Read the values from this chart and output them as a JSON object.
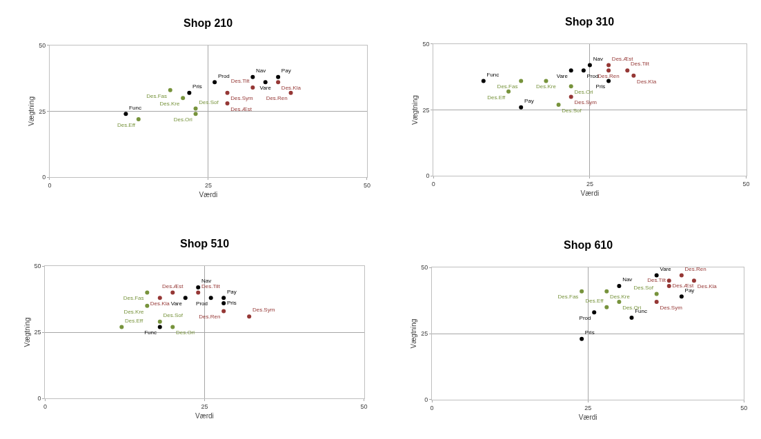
{
  "chart_data": [
    {
      "type": "scatter",
      "title": "Shop 210",
      "xlabel": "Værdi",
      "ylabel": "Vægtning",
      "xlim": [
        0,
        50
      ],
      "ylim": [
        0,
        50
      ],
      "xticks": [
        0,
        25,
        50
      ],
      "yticks": [
        0,
        25,
        50
      ],
      "grid": true,
      "marker": "circle",
      "series": [
        {
          "color": "#000000",
          "x": [
            26,
            22,
            32,
            34,
            36,
            12
          ],
          "values": [
            36,
            32,
            38,
            36,
            38,
            24
          ],
          "value_labels": [
            "Prod",
            "Pris",
            "Nav",
            "Vare",
            "Pay",
            "Func"
          ]
        },
        {
          "color": "#77933c",
          "x": [
            19,
            21,
            23,
            23,
            14
          ],
          "values": [
            33,
            30,
            26,
            24,
            22
          ],
          "value_labels": [
            "Des.Fas",
            "Des.Kre",
            "Des.Sof",
            "Des.Ori",
            "Des.Eff"
          ]
        },
        {
          "color": "#953735",
          "x": [
            28,
            28,
            32,
            36,
            38
          ],
          "values": [
            32,
            28,
            34,
            36,
            32
          ],
          "value_labels": [
            "Des.Sym",
            "Des.Æst",
            "Des.Tilt",
            "Des.Kla",
            "Des.Ren"
          ]
        }
      ]
    },
    {
      "type": "scatter",
      "title": "Shop 310",
      "xlabel": "Værdi",
      "ylabel": "Vægtning",
      "xlim": [
        0,
        50
      ],
      "ylim": [
        0,
        50
      ],
      "xticks": [
        0,
        25,
        50
      ],
      "yticks": [
        0,
        25,
        50
      ],
      "grid": true,
      "marker": "circle",
      "series": [
        {
          "color": "#000000",
          "x": [
            25,
            22,
            24,
            8,
            28,
            14
          ],
          "values": [
            42,
            40,
            40,
            36,
            36,
            26
          ],
          "value_labels": [
            "Nav",
            "Vare",
            "Prod",
            "Func",
            "Pris",
            "Pay"
          ]
        },
        {
          "color": "#77933c",
          "x": [
            14,
            18,
            22,
            12,
            20
          ],
          "values": [
            36,
            36,
            34,
            32,
            27
          ],
          "value_labels": [
            "Des.Fas",
            "Des.Kre",
            "Des.Ori",
            "Des.Eff",
            "Des.Sof"
          ]
        },
        {
          "color": "#953735",
          "x": [
            28,
            28,
            31,
            32,
            22
          ],
          "values": [
            42,
            40,
            40,
            38,
            30
          ],
          "value_labels": [
            "Des.Æst",
            "Des.Ren",
            "Des.Tilt",
            "Des.Kla",
            "Des.Sym"
          ]
        }
      ]
    },
    {
      "type": "scatter",
      "title": "Shop 510",
      "xlabel": "Værdi",
      "ylabel": "Vægtning",
      "xlim": [
        0,
        50
      ],
      "ylim": [
        0,
        50
      ],
      "xticks": [
        0,
        25,
        50
      ],
      "yticks": [
        0,
        25,
        50
      ],
      "grid": true,
      "marker": "circle",
      "series": [
        {
          "color": "#000000",
          "x": [
            24,
            22,
            26,
            28,
            28,
            18
          ],
          "values": [
            42,
            38,
            38,
            38,
            36,
            27
          ],
          "value_labels": [
            "Nav",
            "Vare",
            "Prod",
            "Pay",
            "Pris",
            "Func"
          ]
        },
        {
          "color": "#77933c",
          "x": [
            16,
            16,
            18,
            12,
            20
          ],
          "values": [
            40,
            35,
            29,
            27,
            27
          ],
          "value_labels": [
            "Des.Fas",
            "Des.Kre",
            "Des.Sof",
            "Des.Eff",
            "Des.Ori"
          ]
        },
        {
          "color": "#953735",
          "x": [
            20,
            24,
            18,
            28,
            32
          ],
          "values": [
            40,
            40,
            38,
            33,
            31
          ],
          "value_labels": [
            "Des.Æst",
            "Des.Tilt",
            "Des.Kla",
            "Des.Ren",
            "Des.Sym"
          ]
        }
      ]
    },
    {
      "type": "scatter",
      "title": "Shop 610",
      "xlabel": "Værdi",
      "ylabel": "Vægtning",
      "xlim": [
        0,
        50
      ],
      "ylim": [
        0,
        50
      ],
      "xticks": [
        0,
        25,
        50
      ],
      "yticks": [
        0,
        25,
        50
      ],
      "grid": true,
      "marker": "circle",
      "series": [
        {
          "color": "#000000",
          "x": [
            36,
            30,
            40,
            26,
            32,
            24
          ],
          "values": [
            47,
            43,
            39,
            33,
            31,
            23
          ],
          "value_labels": [
            "Vare",
            "Nav",
            "Pay",
            "Prod",
            "Func",
            "Pris"
          ]
        },
        {
          "color": "#77933c",
          "x": [
            24,
            28,
            36,
            30,
            28
          ],
          "values": [
            41,
            41,
            40,
            37,
            35
          ],
          "value_labels": [
            "Des.Fas",
            "Des.Kre",
            "Des.Sof",
            "Des.Ori",
            "Des.Eff"
          ]
        },
        {
          "color": "#953735",
          "x": [
            40,
            38,
            42,
            38,
            36
          ],
          "values": [
            47,
            45,
            45,
            43,
            37
          ],
          "value_labels": [
            "Des.Ren",
            "Des.Tilt",
            "Des.Kla",
            "Des.Æst",
            "Des.Sym"
          ]
        }
      ]
    }
  ]
}
